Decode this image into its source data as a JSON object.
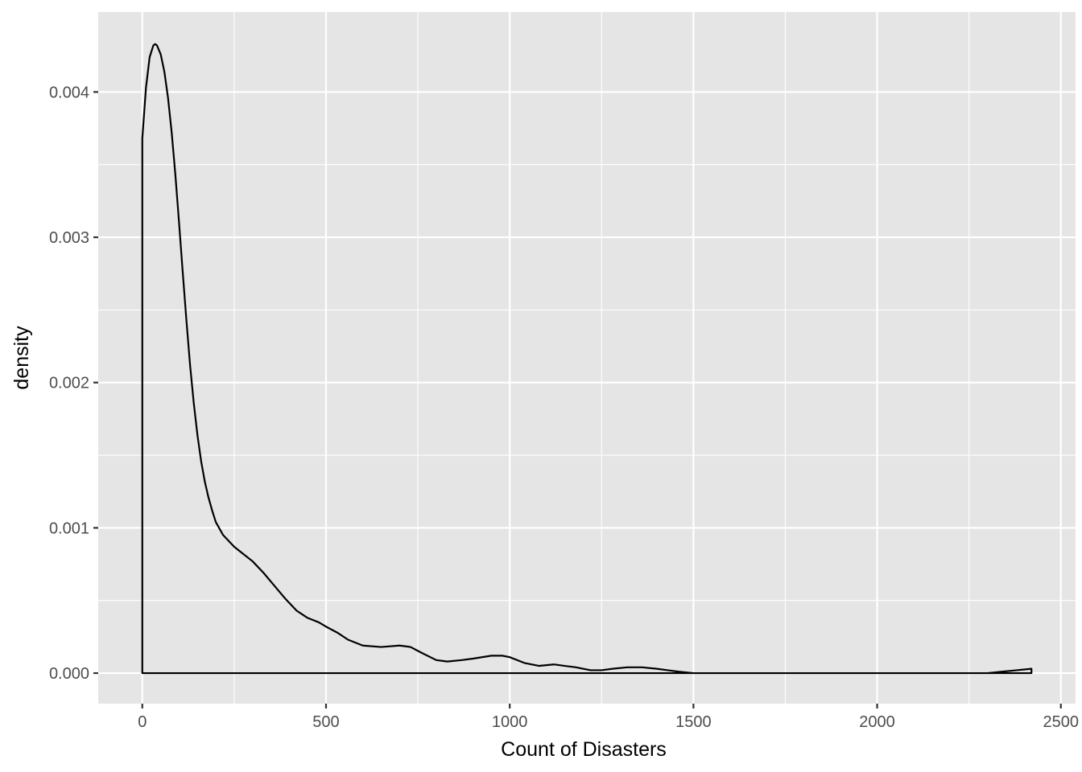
{
  "chart_data": {
    "type": "line",
    "title": "",
    "xlabel": "Count of Disasters",
    "ylabel": "density",
    "xlim": [
      -120,
      2540
    ],
    "ylim": [
      -0.00021,
      0.00455
    ],
    "x_ticks": [
      0,
      500,
      1000,
      1500,
      2000,
      2500
    ],
    "x_tick_labels": [
      "0",
      "500",
      "1000",
      "1500",
      "2000",
      "2500"
    ],
    "y_ticks": [
      0,
      0.001,
      0.002,
      0.003,
      0.004
    ],
    "y_tick_labels": [
      "0.000",
      "0.001",
      "0.002",
      "0.003",
      "0.004"
    ],
    "grid": true,
    "legend": "none",
    "background_color": "#e5e5e5",
    "line_color": "#000000",
    "series": [
      {
        "x": [
          0,
          10,
          20,
          30,
          35,
          40,
          50,
          60,
          70,
          80,
          90,
          100,
          110,
          120,
          130,
          140,
          150,
          160,
          170,
          180,
          190,
          200,
          220,
          250,
          270,
          300,
          330,
          360,
          390,
          420,
          450,
          480,
          500,
          530,
          560,
          600,
          650,
          700,
          730,
          760,
          800,
          830,
          870,
          900,
          950,
          980,
          1000,
          1040,
          1080,
          1120,
          1150,
          1180,
          1220,
          1250,
          1280,
          1320,
          1360,
          1400,
          1430,
          1460,
          1500,
          1550,
          1600,
          1800,
          2000,
          2200,
          2300,
          2340,
          2380,
          2420
        ],
        "y": [
          0.00368,
          0.00403,
          0.00424,
          0.00432,
          0.00433,
          0.00432,
          0.00426,
          0.00414,
          0.00396,
          0.00372,
          0.00343,
          0.0031,
          0.00276,
          0.00243,
          0.00212,
          0.00186,
          0.00164,
          0.00146,
          0.00132,
          0.00121,
          0.00112,
          0.00104,
          0.00095,
          0.00087,
          0.00083,
          0.00077,
          0.00069,
          0.0006,
          0.00051,
          0.00043,
          0.00038,
          0.00035,
          0.00032,
          0.00028,
          0.00023,
          0.00019,
          0.00018,
          0.00019,
          0.00018,
          0.00014,
          9e-05,
          8e-05,
          9e-05,
          0.0001,
          0.00012,
          0.00012,
          0.00011,
          7e-05,
          5e-05,
          6e-05,
          5e-05,
          4e-05,
          2e-05,
          2e-05,
          3e-05,
          4e-05,
          4e-05,
          3e-05,
          2e-05,
          1e-05,
          0.0,
          0.0,
          0.0,
          0.0,
          0.0,
          0.0,
          0.0,
          1e-05,
          2e-05,
          3e-05
        ]
      }
    ]
  }
}
